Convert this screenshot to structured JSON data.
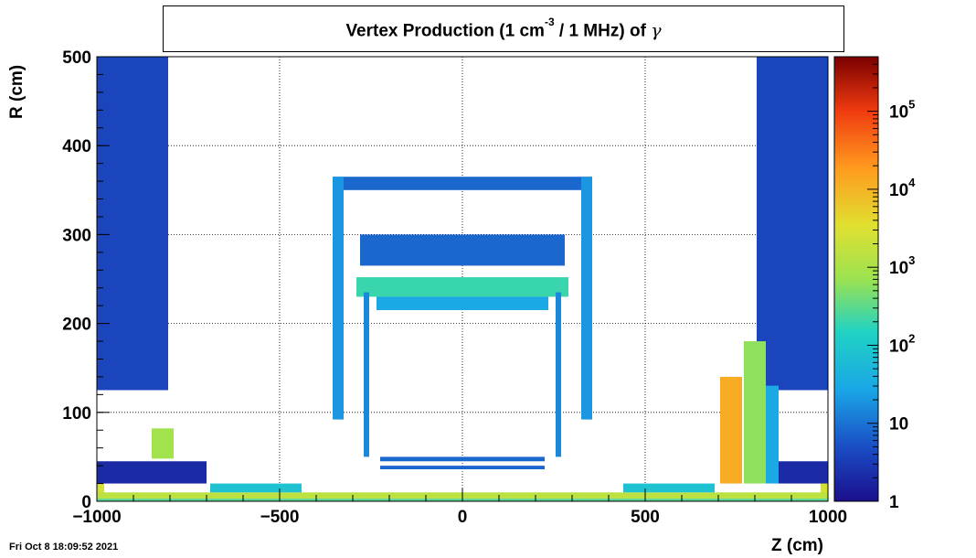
{
  "chart_data": {
    "type": "heatmap",
    "title": {
      "prefix": "Vertex Production (1 cm",
      "superscript": "-3",
      "suffix": "/ 1 MHz) of",
      "symbol": "γ"
    },
    "xlabel": "Z (cm)",
    "ylabel": "R (cm)",
    "xlim": [
      -1000,
      1000
    ],
    "ylim": [
      0,
      500
    ],
    "x_ticks": [
      {
        "value": -1000,
        "label": "−1000"
      },
      {
        "value": -500,
        "label": "−500"
      },
      {
        "value": 0,
        "label": "0"
      },
      {
        "value": 500,
        "label": "500"
      },
      {
        "value": 1000,
        "label": "1000"
      }
    ],
    "y_ticks": [
      {
        "value": 0,
        "label": "0"
      },
      {
        "value": 100,
        "label": "100"
      },
      {
        "value": 200,
        "label": "200"
      },
      {
        "value": 300,
        "label": "300"
      },
      {
        "value": 400,
        "label": "400"
      },
      {
        "value": 500,
        "label": "500"
      }
    ],
    "grid": true,
    "colorbar": {
      "scale": "log",
      "range": [
        1,
        500000
      ],
      "ticks": [
        {
          "value": 1,
          "base": "1",
          "exp": ""
        },
        {
          "value": 10,
          "base": "10",
          "exp": ""
        },
        {
          "value": 100,
          "base": "10",
          "exp": "2"
        },
        {
          "value": 1000,
          "base": "10",
          "exp": "3"
        },
        {
          "value": 10000,
          "base": "10",
          "exp": "4"
        },
        {
          "value": 100000,
          "base": "10",
          "exp": "5"
        }
      ]
    },
    "regions": [
      {
        "z": [
          -1000,
          -805
        ],
        "r": [
          125,
          500
        ],
        "value": 4
      },
      {
        "z": [
          805,
          1000
        ],
        "r": [
          125,
          500
        ],
        "value": 4
      },
      {
        "z": [
          -1000,
          -980
        ],
        "r": [
          8,
          35
        ],
        "value": 2500
      },
      {
        "z": [
          980,
          1000
        ],
        "r": [
          8,
          35
        ],
        "value": 2500
      },
      {
        "z": [
          -1000,
          1000
        ],
        "r": [
          3,
          10
        ],
        "value": 1500
      },
      {
        "z": [
          -1000,
          1000
        ],
        "r": [
          0,
          3
        ],
        "value": 300
      },
      {
        "z": [
          -850,
          -790
        ],
        "r": [
          48,
          82
        ],
        "value": 800
      },
      {
        "z": [
          -690,
          -440
        ],
        "r": [
          10,
          20
        ],
        "value": 80
      },
      {
        "z": [
          440,
          690
        ],
        "r": [
          10,
          20
        ],
        "value": 80
      },
      {
        "z": [
          -355,
          355
        ],
        "r": [
          350,
          365
        ],
        "value": 8
      },
      {
        "z": [
          -355,
          -325
        ],
        "r": [
          92,
          365
        ],
        "value": 20
      },
      {
        "z": [
          325,
          355
        ],
        "r": [
          92,
          365
        ],
        "value": 20
      },
      {
        "z": [
          -280,
          280
        ],
        "r": [
          265,
          300
        ],
        "value": 8
      },
      {
        "z": [
          -290,
          290
        ],
        "r": [
          230,
          252
        ],
        "value": 200
      },
      {
        "z": [
          -235,
          235
        ],
        "r": [
          215,
          230
        ],
        "value": 30
      },
      {
        "z": [
          -270,
          -255
        ],
        "r": [
          50,
          235
        ],
        "value": 15
      },
      {
        "z": [
          255,
          270
        ],
        "r": [
          50,
          235
        ],
        "value": 15
      },
      {
        "z": [
          -225,
          225
        ],
        "r": [
          45,
          50
        ],
        "value": 8
      },
      {
        "z": [
          -225,
          225
        ],
        "r": [
          36,
          40
        ],
        "value": 8
      },
      {
        "z": [
          705,
          765
        ],
        "r": [
          20,
          140
        ],
        "value": 12000
      },
      {
        "z": [
          770,
          830
        ],
        "r": [
          20,
          180
        ],
        "value": 600
      },
      {
        "z": [
          830,
          865
        ],
        "r": [
          20,
          130
        ],
        "value": 30
      },
      {
        "z": [
          -1000,
          -700
        ],
        "r": [
          20,
          45
        ],
        "value": 2
      },
      {
        "z": [
          865,
          1000
        ],
        "r": [
          20,
          45
        ],
        "value": 2
      }
    ]
  },
  "timestamp": "Fri Oct  8 18:09:52 2021"
}
